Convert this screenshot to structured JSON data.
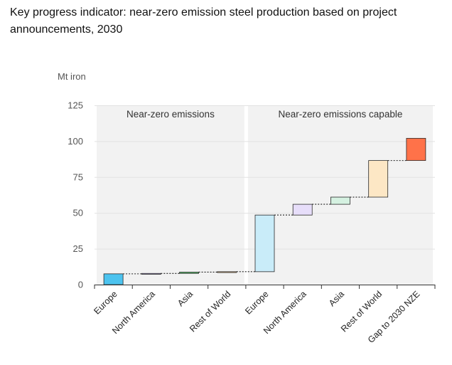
{
  "title": "Key progress indicator: near-zero emission steel production based on project announcements, 2030",
  "chart_data": {
    "type": "waterfall",
    "ylabel": "Mt iron",
    "ylim": [
      0,
      125
    ],
    "yticks": [
      0,
      25,
      50,
      75,
      100,
      125
    ],
    "grid": true,
    "groups": [
      {
        "label": "Near-zero emissions",
        "first": 0,
        "last": 3
      },
      {
        "label": "Near-zero emissions capable",
        "first": 4,
        "last": 8
      }
    ],
    "bars": [
      {
        "category": "Europe",
        "base": 0,
        "value": 7.5,
        "color": "#4cc3ef"
      },
      {
        "category": "North America",
        "base": 7.5,
        "value": 0.3,
        "color": "#a99ad6"
      },
      {
        "category": "Asia",
        "base": 7.8,
        "value": 0.9,
        "color": "#5aba6c"
      },
      {
        "category": "Rest of World",
        "base": 8.7,
        "value": 0.3,
        "color": "#f2c68a"
      },
      {
        "category": "Europe",
        "base": 9,
        "value": 39.5,
        "color": "#c9ecf9"
      },
      {
        "category": "North America",
        "base": 48.5,
        "value": 7.5,
        "color": "#e7defa"
      },
      {
        "category": "Asia",
        "base": 56,
        "value": 5,
        "color": "#d5f1e1"
      },
      {
        "category": "Rest of World",
        "base": 61,
        "value": 25.5,
        "color": "#fde7c5"
      },
      {
        "category": "Gap to 2030 NZE",
        "base": 86.5,
        "value": 15.5,
        "color": "#ff7249"
      }
    ]
  }
}
